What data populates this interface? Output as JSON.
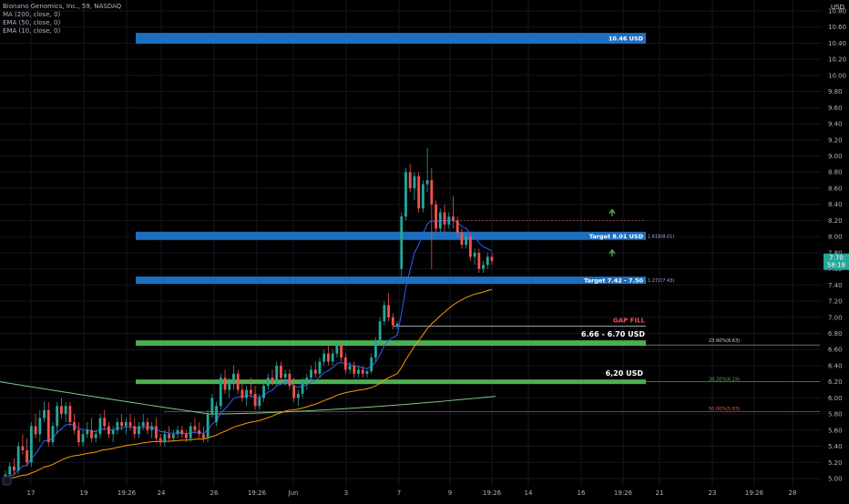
{
  "legend": {
    "symbol": "Bionano Genomics, Inc., 59, NASDAQ",
    "indicators": [
      "MA (200, close, 0)",
      "EMA (50, close, 0)",
      "EMA (10, close, 0)"
    ]
  },
  "axis": {
    "currency": "USD",
    "y_ticks": [
      "10.80",
      "10.60",
      "10.40",
      "10.20",
      "10.00",
      "9.80",
      "9.60",
      "9.40",
      "9.20",
      "9.00",
      "8.80",
      "8.60",
      "8.40",
      "8.20",
      "8.00",
      "7.80",
      "7.60",
      "7.40",
      "7.20",
      "7.00",
      "6.80",
      "6.60",
      "6.40",
      "6.20",
      "6.00",
      "5.80",
      "5.60",
      "5.40",
      "5.20",
      "5.00"
    ],
    "x_ticks": [
      "17",
      "19",
      "19:26",
      "24",
      "26",
      "19:26",
      "Jun",
      "3",
      "7",
      "9",
      "19:26",
      "14",
      "16",
      "19:26",
      "21",
      "23",
      "19:26",
      "28"
    ]
  },
  "price_badge": {
    "price": "7.70",
    "countdown": "58:18"
  },
  "zones": [
    {
      "label": "10.46 USD",
      "price": 10.46
    },
    {
      "label": "Target 8.01 USD",
      "price": 8.01,
      "fib": "1.618(8.01)"
    },
    {
      "label": "Target 7.42 - 7.50",
      "price": 7.46,
      "fib": "1.272(7.43)"
    },
    {
      "label": "6.66 - 6.70 USD",
      "price": 6.68,
      "fib": "23.60%(6.63)"
    },
    {
      "label": "6,20 USD",
      "price": 6.2,
      "fib": "38.20%(6.19)"
    }
  ],
  "annotations": {
    "gap_fill": "GAP FILL",
    "fib_50": "50.00%(5.83)"
  },
  "colors": {
    "up": "#26a69a",
    "down": "#ef5350",
    "blue_zone": "#1e6fbf",
    "green_zone": "#4caf50",
    "ema10": "#2962ff",
    "ema50": "#ff9800",
    "ma200": "#81c784",
    "badge": "#26a69a"
  },
  "chart_data": {
    "type": "candlestick",
    "ylim": [
      4.95,
      10.9
    ],
    "series": [
      {
        "name": "MA (200, close, 0)"
      },
      {
        "name": "EMA (50, close, 0)"
      },
      {
        "name": "EMA (10, close, 0)"
      }
    ],
    "candles_ohlc": [
      [
        5.0,
        5.1,
        4.98,
        5.05
      ],
      [
        5.05,
        5.2,
        5.0,
        5.15
      ],
      [
        5.15,
        5.25,
        5.05,
        5.1
      ],
      [
        5.1,
        5.45,
        5.05,
        5.4
      ],
      [
        5.4,
        5.55,
        5.3,
        5.35
      ],
      [
        5.35,
        5.5,
        5.15,
        5.2
      ],
      [
        5.2,
        5.7,
        5.15,
        5.65
      ],
      [
        5.65,
        5.8,
        5.5,
        5.55
      ],
      [
        5.55,
        5.85,
        5.45,
        5.75
      ],
      [
        5.75,
        5.95,
        5.7,
        5.85
      ],
      [
        5.85,
        5.95,
        5.4,
        5.45
      ],
      [
        5.45,
        5.7,
        5.4,
        5.65
      ],
      [
        5.65,
        5.95,
        5.55,
        5.9
      ],
      [
        5.9,
        6.0,
        5.75,
        5.8
      ],
      [
        5.8,
        5.95,
        5.7,
        5.9
      ],
      [
        5.9,
        5.95,
        5.65,
        5.7
      ],
      [
        5.7,
        5.8,
        5.55,
        5.6
      ],
      [
        5.6,
        5.7,
        5.4,
        5.45
      ],
      [
        5.45,
        5.6,
        5.4,
        5.55
      ],
      [
        5.55,
        5.7,
        5.5,
        5.6
      ],
      [
        5.6,
        5.75,
        5.45,
        5.5
      ],
      [
        5.5,
        5.6,
        5.45,
        5.55
      ],
      [
        5.55,
        5.8,
        5.5,
        5.75
      ],
      [
        5.75,
        5.85,
        5.6,
        5.65
      ],
      [
        5.65,
        5.7,
        5.5,
        5.55
      ],
      [
        5.55,
        5.65,
        5.45,
        5.6
      ],
      [
        5.6,
        5.75,
        5.55,
        5.7
      ],
      [
        5.7,
        5.8,
        5.6,
        5.65
      ],
      [
        5.65,
        5.75,
        5.55,
        5.7
      ],
      [
        5.7,
        5.8,
        5.6,
        5.65
      ],
      [
        5.65,
        5.75,
        5.5,
        5.55
      ],
      [
        5.55,
        5.7,
        5.5,
        5.65
      ],
      [
        5.65,
        5.8,
        5.6,
        5.7
      ],
      [
        5.7,
        5.75,
        5.55,
        5.6
      ],
      [
        5.6,
        5.7,
        5.5,
        5.65
      ],
      [
        5.65,
        5.75,
        5.45,
        5.5
      ],
      [
        5.5,
        5.55,
        5.4,
        5.45
      ],
      [
        5.45,
        5.6,
        5.4,
        5.55
      ],
      [
        5.55,
        5.65,
        5.45,
        5.5
      ],
      [
        5.5,
        5.6,
        5.45,
        5.55
      ],
      [
        5.55,
        5.65,
        5.5,
        5.6
      ],
      [
        5.6,
        5.65,
        5.5,
        5.55
      ],
      [
        5.55,
        5.6,
        5.45,
        5.5
      ],
      [
        5.5,
        5.7,
        5.45,
        5.65
      ],
      [
        5.65,
        5.75,
        5.55,
        5.6
      ],
      [
        5.6,
        5.7,
        5.5,
        5.55
      ],
      [
        5.55,
        5.65,
        5.45,
        5.5
      ],
      [
        5.5,
        5.85,
        5.45,
        5.8
      ],
      [
        5.8,
        6.05,
        5.75,
        6.0
      ],
      [
        5.7,
        5.95,
        5.65,
        5.9
      ],
      [
        5.9,
        6.3,
        5.85,
        6.25
      ],
      [
        6.25,
        6.35,
        6.05,
        6.1
      ],
      [
        6.1,
        6.25,
        6.0,
        6.2
      ],
      [
        6.2,
        6.4,
        6.1,
        6.3
      ],
      [
        6.3,
        6.35,
        6.05,
        6.1
      ],
      [
        6.1,
        6.2,
        5.95,
        6.0
      ],
      [
        6.0,
        6.15,
        5.9,
        6.1
      ],
      [
        6.1,
        6.25,
        6.0,
        6.05
      ],
      [
        6.05,
        6.15,
        5.85,
        5.9
      ],
      [
        5.9,
        6.05,
        5.85,
        6.0
      ],
      [
        6.0,
        6.2,
        5.95,
        6.15
      ],
      [
        6.15,
        6.3,
        6.1,
        6.25
      ],
      [
        6.25,
        6.35,
        6.15,
        6.2
      ],
      [
        6.2,
        6.45,
        6.15,
        6.4
      ],
      [
        6.4,
        6.45,
        6.2,
        6.25
      ],
      [
        6.25,
        6.35,
        6.15,
        6.3
      ],
      [
        6.3,
        6.35,
        6.1,
        6.15
      ],
      [
        6.15,
        6.25,
        5.95,
        6.0
      ],
      [
        6.0,
        6.1,
        5.9,
        6.05
      ],
      [
        6.05,
        6.25,
        6.0,
        6.2
      ],
      [
        6.2,
        6.3,
        6.1,
        6.25
      ],
      [
        6.25,
        6.4,
        6.2,
        6.35
      ],
      [
        6.35,
        6.45,
        6.25,
        6.3
      ],
      [
        6.3,
        6.5,
        6.25,
        6.45
      ],
      [
        6.45,
        6.6,
        6.4,
        6.55
      ],
      [
        6.55,
        6.65,
        6.4,
        6.45
      ],
      [
        6.45,
        6.6,
        6.4,
        6.55
      ],
      [
        6.55,
        6.7,
        6.5,
        6.65
      ],
      [
        6.65,
        6.7,
        6.45,
        6.5
      ],
      [
        6.5,
        6.55,
        6.3,
        6.35
      ],
      [
        6.35,
        6.45,
        6.3,
        6.4
      ],
      [
        6.4,
        6.45,
        6.25,
        6.3
      ],
      [
        6.3,
        6.4,
        6.25,
        6.35
      ],
      [
        6.35,
        6.4,
        6.25,
        6.3
      ],
      [
        6.3,
        6.35,
        6.25,
        6.33
      ],
      [
        6.33,
        6.55,
        6.3,
        6.5
      ],
      [
        6.5,
        6.75,
        6.45,
        6.7
      ],
      [
        6.7,
        7.0,
        6.65,
        6.95
      ],
      [
        6.95,
        7.2,
        6.9,
        7.15
      ],
      [
        7.15,
        7.3,
        6.95,
        7.0
      ],
      [
        7.0,
        7.05,
        6.85,
        6.9
      ],
      [
        6.9,
        6.95,
        6.85,
        6.92
      ],
      [
        7.6,
        8.3,
        7.5,
        8.25
      ],
      [
        8.25,
        8.85,
        8.2,
        8.8
      ],
      [
        8.8,
        8.9,
        8.55,
        8.6
      ],
      [
        8.6,
        8.8,
        8.45,
        8.75
      ],
      [
        8.75,
        8.8,
        8.3,
        8.35
      ],
      [
        8.35,
        8.7,
        8.3,
        8.65
      ],
      [
        8.65,
        9.1,
        8.55,
        8.7
      ],
      [
        8.7,
        8.85,
        7.6,
        8.4
      ],
      [
        8.4,
        8.45,
        8.05,
        8.1
      ],
      [
        8.1,
        8.35,
        8.05,
        8.3
      ],
      [
        8.3,
        8.4,
        8.05,
        8.15
      ],
      [
        8.15,
        8.3,
        8.1,
        8.25
      ],
      [
        8.25,
        8.5,
        8.1,
        8.2
      ],
      [
        8.2,
        8.25,
        8.0,
        8.05
      ],
      [
        8.05,
        8.1,
        7.85,
        7.9
      ],
      [
        7.9,
        8.05,
        7.85,
        8.0
      ],
      [
        8.0,
        8.05,
        7.7,
        7.75
      ],
      [
        7.75,
        7.85,
        7.65,
        7.8
      ],
      [
        7.8,
        7.85,
        7.55,
        7.6
      ],
      [
        7.6,
        7.7,
        7.55,
        7.65
      ],
      [
        7.65,
        7.8,
        7.6,
        7.75
      ],
      [
        7.75,
        7.8,
        7.65,
        7.7
      ]
    ]
  }
}
